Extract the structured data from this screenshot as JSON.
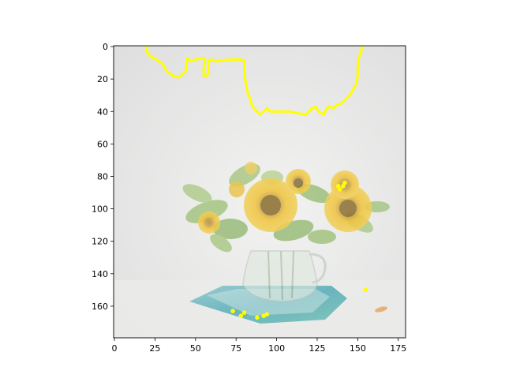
{
  "figure": {
    "image_description": "Sunflowers in a clear glass pitcher on a blue-green cloth, pale washed-out background, with yellow contour lines overlaid",
    "overlay_color": "#ffff00",
    "x_ticks": [
      "0",
      "25",
      "50",
      "75",
      "100",
      "125",
      "150",
      "175"
    ],
    "y_ticks": [
      "0",
      "20",
      "40",
      "60",
      "80",
      "100",
      "120",
      "140",
      "160"
    ]
  },
  "chart_data": {
    "type": "image",
    "xlim": [
      -0.5,
      179.5
    ],
    "ylim": [
      179.5,
      -0.5
    ],
    "x_tick_values": [
      0,
      25,
      50,
      75,
      100,
      125,
      150,
      175
    ],
    "y_tick_values": [
      0,
      20,
      40,
      60,
      80,
      100,
      120,
      140,
      160
    ],
    "contour_top": [
      [
        20,
        -0.5
      ],
      [
        20,
        3
      ],
      [
        22,
        6
      ],
      [
        26,
        8
      ],
      [
        30,
        11
      ],
      [
        32,
        15
      ],
      [
        36,
        18
      ],
      [
        40,
        19
      ],
      [
        42,
        17
      ],
      [
        44,
        15
      ],
      [
        45,
        7
      ],
      [
        47,
        9
      ],
      [
        50,
        8
      ],
      [
        54,
        7
      ],
      [
        56,
        8
      ],
      [
        55,
        13
      ],
      [
        55,
        18
      ],
      [
        57,
        18
      ],
      [
        58,
        16
      ],
      [
        58,
        9
      ],
      [
        60,
        8
      ],
      [
        63,
        9
      ],
      [
        71,
        8
      ],
      [
        78,
        8
      ],
      [
        80,
        9
      ],
      [
        80,
        16
      ],
      [
        81,
        22
      ],
      [
        82,
        28
      ],
      [
        84,
        33
      ],
      [
        85,
        37
      ],
      [
        88,
        40
      ],
      [
        90,
        42
      ],
      [
        92,
        40
      ],
      [
        94,
        38
      ],
      [
        96,
        40
      ],
      [
        98,
        40
      ],
      [
        102,
        40
      ],
      [
        108,
        40
      ],
      [
        113,
        41
      ],
      [
        118,
        42
      ],
      [
        120,
        40
      ],
      [
        122,
        38
      ],
      [
        124,
        37
      ],
      [
        126,
        40
      ],
      [
        129,
        42
      ],
      [
        131,
        38
      ],
      [
        133,
        37
      ],
      [
        135,
        38
      ],
      [
        137,
        36
      ],
      [
        140,
        35
      ],
      [
        142,
        33
      ],
      [
        145,
        30
      ],
      [
        147,
        27
      ],
      [
        149,
        23
      ],
      [
        150,
        18
      ],
      [
        150,
        12
      ],
      [
        151,
        6
      ],
      [
        152,
        3
      ],
      [
        153,
        0
      ],
      [
        153,
        -0.5
      ]
    ],
    "markers": [
      [
        138,
        86
      ],
      [
        139,
        88
      ],
      [
        141,
        86
      ],
      [
        142,
        84
      ],
      [
        73,
        163
      ],
      [
        78,
        166
      ],
      [
        80,
        164
      ],
      [
        88,
        167
      ],
      [
        92,
        166
      ],
      [
        94,
        165
      ],
      [
        155,
        150
      ]
    ]
  }
}
